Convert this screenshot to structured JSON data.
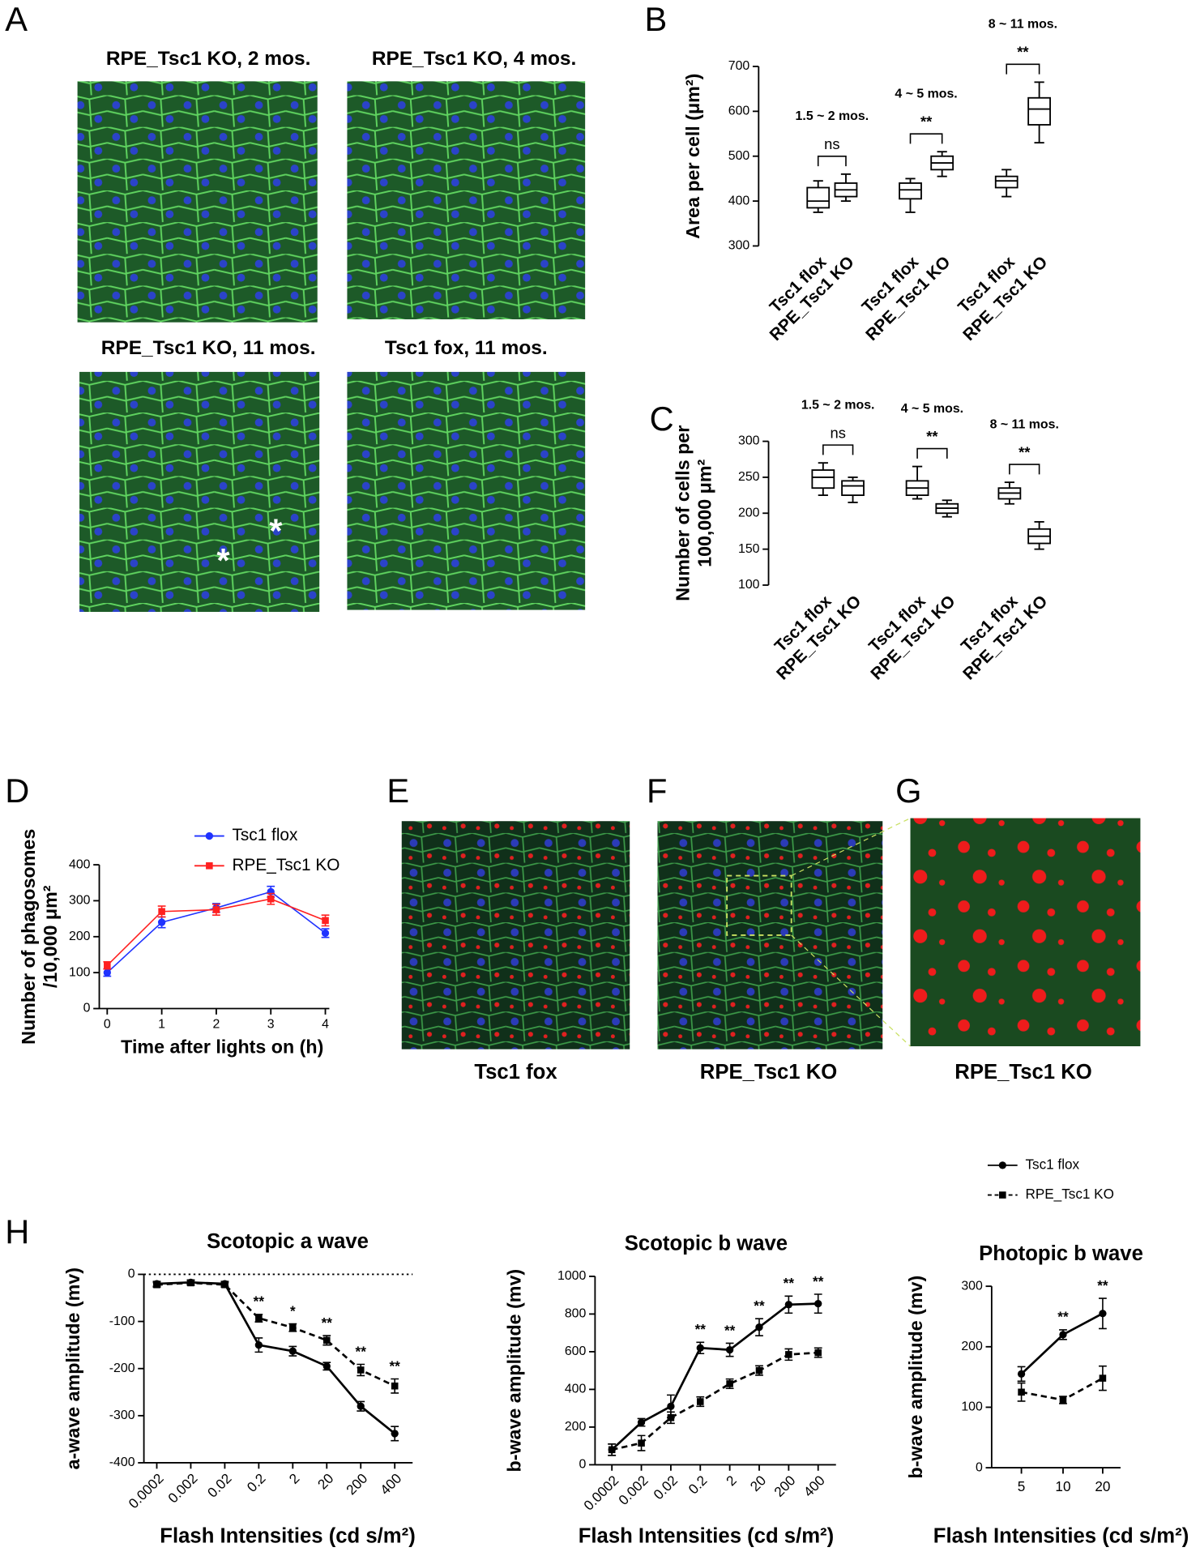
{
  "figure": {
    "letters": [
      "A",
      "B",
      "C",
      "D",
      "E",
      "F",
      "G",
      "H"
    ],
    "image_titles": [
      "RPE_Tsc1 KO, 2 mos.",
      "RPE_Tsc1 KO, 4 mos.",
      "RPE_Tsc1 KO, 11 mos.",
      "Tsc1 fox, 11 mos."
    ],
    "image_markers": [
      "*",
      "*"
    ],
    "image_captions": [
      "Tsc1 fox",
      "RPE_Tsc1 KO",
      "RPE_Tsc1 KO"
    ]
  },
  "chart_data": [
    {
      "type": "box",
      "ylabel": "Area per cell (μm²)",
      "categories": [
        "Tsc1 flox",
        "RPE_Tsc1 KO",
        "Tsc1 flox",
        "RPE_Tsc1 KO",
        "Tsc1 flox",
        "RPE_Tsc1 KO"
      ],
      "boxes": [
        {
          "min": 375,
          "q1": 385,
          "median": 400,
          "q3": 430,
          "max": 445
        },
        {
          "min": 400,
          "q1": 410,
          "median": 425,
          "q3": 440,
          "max": 460
        },
        {
          "min": 375,
          "q1": 405,
          "median": 425,
          "q3": 440,
          "max": 450
        },
        {
          "min": 455,
          "q1": 470,
          "median": 485,
          "q3": 500,
          "max": 510
        },
        {
          "min": 410,
          "q1": 430,
          "median": 445,
          "q3": 455,
          "max": 470
        },
        {
          "min": 530,
          "q1": 570,
          "median": 605,
          "q3": 630,
          "max": 665
        }
      ],
      "annotations": [
        {
          "period": "1.5 ~ 2 mos.",
          "significance": "ns"
        },
        {
          "period": "4 ~ 5 mos.",
          "significance": "**"
        },
        {
          "period": "8 ~ 11 mos.",
          "significance": "**"
        }
      ],
      "ylim": [
        300,
        700
      ],
      "yticks": [
        300,
        400,
        500,
        600,
        700
      ]
    },
    {
      "type": "box",
      "ylabel": [
        "Number of cells per",
        "100,000 μm²"
      ],
      "categories": [
        "Tsc1 flox",
        "RPE_Tsc1 KO",
        "Tsc1 flox",
        "RPE_Tsc1 KO",
        "Tsc1 flox",
        "RPE_Tsc1 KO"
      ],
      "boxes": [
        {
          "min": 225,
          "q1": 235,
          "median": 250,
          "q3": 260,
          "max": 270
        },
        {
          "min": 215,
          "q1": 225,
          "median": 238,
          "q3": 245,
          "max": 250
        },
        {
          "min": 220,
          "q1": 225,
          "median": 235,
          "q3": 245,
          "max": 265
        },
        {
          "min": 195,
          "q1": 200,
          "median": 207,
          "q3": 213,
          "max": 218
        },
        {
          "min": 213,
          "q1": 220,
          "median": 228,
          "q3": 235,
          "max": 243
        },
        {
          "min": 150,
          "q1": 158,
          "median": 168,
          "q3": 178,
          "max": 188
        }
      ],
      "annotations": [
        {
          "period": "1.5 ~ 2 mos.",
          "significance": "ns"
        },
        {
          "period": "4 ~ 5 mos.",
          "significance": "**"
        },
        {
          "period": "8 ~ 11 mos.",
          "significance": "**"
        }
      ],
      "ylim": [
        100,
        300
      ],
      "yticks": [
        100,
        150,
        200,
        250,
        300
      ]
    },
    {
      "type": "line",
      "xlabel": "Time after lights on (h)",
      "ylabel": [
        "Number of phagosomes",
        "/10,000 μm²"
      ],
      "x": [
        0,
        1,
        2,
        3,
        4
      ],
      "xlim": [
        0,
        4
      ],
      "xticks": [
        0,
        1,
        2,
        3,
        4
      ],
      "ylim": [
        0,
        400
      ],
      "yticks": [
        0,
        100,
        200,
        300,
        400
      ],
      "legend": "above",
      "series": [
        {
          "name": "Tsc1 flox",
          "color": "#1f32ff",
          "marker": "circle",
          "values": [
            100,
            240,
            280,
            325,
            210
          ],
          "errors": [
            10,
            15,
            12,
            15,
            12
          ]
        },
        {
          "name": "RPE_Tsc1 KO",
          "color": "#ff2020",
          "marker": "square",
          "values": [
            120,
            270,
            275,
            305,
            245
          ],
          "errors": [
            10,
            15,
            15,
            15,
            15
          ]
        }
      ]
    },
    {
      "type": "line",
      "title": "Scotopic a wave",
      "xlabel": "Flash Intensities (cd s/m²)",
      "ylabel": "a-wave amplitude (mv)",
      "categories": [
        "0.0002",
        "0.002",
        "0.02",
        "0.2",
        "2",
        "20",
        "200",
        "400"
      ],
      "ylim": [
        -400,
        0
      ],
      "yticks": [
        -400,
        -300,
        -200,
        -100,
        0
      ],
      "zero_line": true,
      "significance": [
        null,
        null,
        null,
        "**",
        "*",
        "**",
        "**",
        "**"
      ],
      "series": [
        {
          "color": "#000000",
          "marker": "circle",
          "dashed": false,
          "values": [
            -20,
            -17,
            -20,
            -150,
            -163,
            -195,
            -280,
            -338
          ],
          "errors": [
            5,
            5,
            5,
            15,
            10,
            8,
            10,
            15
          ]
        },
        {
          "color": "#000000",
          "marker": "square",
          "dashed": true,
          "values": [
            -22,
            -18,
            -22,
            -93,
            -113,
            -140,
            -203,
            -237
          ],
          "errors": [
            5,
            5,
            5,
            8,
            8,
            10,
            12,
            15
          ]
        }
      ]
    },
    {
      "type": "line",
      "title": "Scotopic b wave",
      "xlabel": "Flash Intensities (cd s/m²)",
      "ylabel": "b-wave amplitude (mv)",
      "categories": [
        "0.0002",
        "0.002",
        "0.02",
        "0.2",
        "2",
        "20",
        "200",
        "400"
      ],
      "ylim": [
        0,
        1000
      ],
      "yticks": [
        0,
        200,
        400,
        600,
        800,
        1000
      ],
      "significance": [
        null,
        null,
        null,
        "**",
        "**",
        "**",
        "**",
        "**"
      ],
      "series": [
        {
          "color": "#000000",
          "marker": "circle",
          "dashed": false,
          "values": [
            80,
            225,
            310,
            620,
            610,
            730,
            850,
            855
          ],
          "errors": [
            30,
            20,
            60,
            30,
            35,
            45,
            45,
            50
          ]
        },
        {
          "color": "#000000",
          "marker": "square",
          "dashed": true,
          "values": [
            80,
            115,
            250,
            335,
            430,
            500,
            585,
            595
          ],
          "errors": [
            30,
            40,
            30,
            25,
            25,
            25,
            30,
            25
          ]
        }
      ]
    },
    {
      "type": "line",
      "title": "Photopic b wave",
      "xlabel": "Flash Intensities (cd s/m²)",
      "ylabel": "b-wave amplitude (mv)",
      "categories": [
        "5",
        "10",
        "20"
      ],
      "ylim": [
        0,
        300
      ],
      "yticks": [
        0,
        100,
        200,
        300
      ],
      "legend": "above",
      "significance": [
        null,
        "**",
        "**"
      ],
      "series": [
        {
          "name": "Tsc1 flox",
          "color": "#000000",
          "marker": "circle",
          "dashed": false,
          "values": [
            155,
            220,
            255
          ],
          "errors": [
            12,
            8,
            25
          ]
        },
        {
          "name": "RPE_Tsc1 KO",
          "color": "#000000",
          "marker": "square",
          "dashed": true,
          "values": [
            125,
            112,
            148
          ],
          "errors": [
            15,
            6,
            20
          ]
        }
      ]
    }
  ]
}
